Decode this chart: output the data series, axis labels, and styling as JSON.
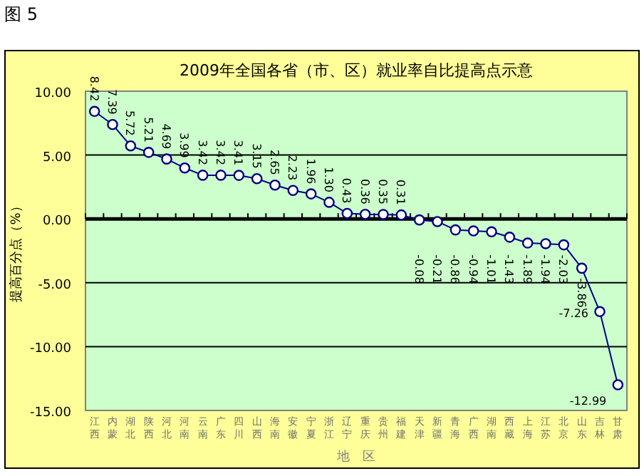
{
  "chart_data": {
    "type": "line",
    "title": "2009年全国各省（市、区）就业率自比提高点示意",
    "xlabel": "地　区",
    "ylabel": "提高百分点（%）",
    "annotations": [
      "图 5"
    ],
    "categories": [
      "江西",
      "内蒙",
      "湖北",
      "陕西",
      "河北",
      "河南",
      "云南",
      "广东",
      "四川",
      "山西",
      "海南",
      "安徽",
      "宁夏",
      "浙江",
      "辽宁",
      "重庆",
      "贵州",
      "福建",
      "天津",
      "新疆",
      "青海",
      "广西",
      "湖南",
      "西藏",
      "上海",
      "江苏",
      "北京",
      "山东",
      "吉林",
      "甘肃"
    ],
    "series": [
      {
        "color": "#000080",
        "values": [
          8.42,
          7.39,
          5.72,
          5.21,
          4.69,
          3.99,
          3.42,
          3.42,
          3.41,
          3.15,
          2.65,
          2.23,
          1.96,
          1.3,
          0.43,
          0.36,
          0.35,
          0.31,
          -0.08,
          -0.21,
          -0.86,
          -0.94,
          -1.01,
          -1.43,
          -1.89,
          -1.94,
          -2.03,
          -3.86,
          -7.26,
          -12.99
        ],
        "value_labels": [
          "8.42",
          "7.39",
          "5.72",
          "5.21",
          "4.69",
          "3.99",
          "3.42",
          "3.42",
          "3.41",
          "3.15",
          "2.65",
          "2.23",
          "1.96",
          "1.30",
          "0.43",
          "0.36",
          "0.35",
          "0.31",
          "-0.08",
          "-0.21",
          "-0.86",
          "-0.94",
          "-1.01",
          "-1.43",
          "-1.89",
          "-1.94",
          "-2.03",
          "-3.86",
          "-7.26",
          "-12.99"
        ]
      }
    ],
    "ylim": [
      -15,
      10
    ],
    "yticks": [
      {
        "value": 10,
        "label": "10.00"
      },
      {
        "value": 5,
        "label": "5.00"
      },
      {
        "value": 0,
        "label": "0.00"
      },
      {
        "value": -5,
        "label": "-5.00"
      },
      {
        "value": -10,
        "label": "-10.00"
      },
      {
        "value": -15,
        "label": "-15.00"
      }
    ],
    "grid": "y",
    "marker": "circle",
    "line_style": "solid"
  }
}
